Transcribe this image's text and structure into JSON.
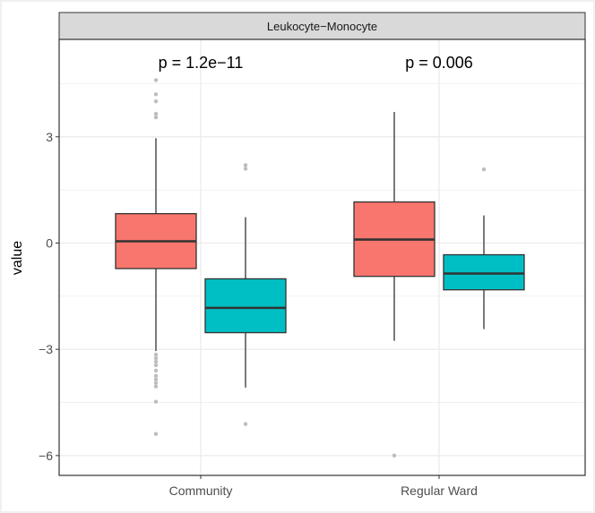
{
  "chart_data": {
    "type": "boxplot",
    "facet_label": "Leukocyte−Monocyte",
    "ylabel": "value",
    "xlabel": "",
    "ylim": [
      -6.56,
      5.75
    ],
    "yticks": [
      3,
      0,
      -3,
      -6
    ],
    "ytick_labels": [
      "3",
      "0",
      "−3",
      "−6"
    ],
    "grid": true,
    "categories": [
      "Community",
      "Regular Ward"
    ],
    "colors": {
      "group1": "#F8766D",
      "group2": "#00BFC4",
      "outlier": "#bdbdbd"
    },
    "annotations": [
      "p = 1.2e−11",
      "p = 0.006"
    ],
    "groups": [
      [
        {
          "fill": "#F8766D",
          "q1": -0.72,
          "median": 0.05,
          "q3": 0.83,
          "lower": -3.05,
          "upper": 2.96,
          "outliers": [
            4.6,
            4.2,
            4.0,
            3.65,
            3.55,
            -3.15,
            -3.25,
            -3.35,
            -3.45,
            -3.6,
            -3.75,
            -3.85,
            -3.95,
            -4.05,
            -4.48,
            -5.39
          ]
        },
        {
          "fill": "#00BFC4",
          "q1": -2.53,
          "median": -1.83,
          "q3": -1.01,
          "lower": -4.08,
          "upper": 0.73,
          "outliers": [
            2.2,
            2.1,
            -5.11
          ]
        }
      ],
      [
        {
          "fill": "#F8766D",
          "q1": -0.94,
          "median": 0.1,
          "q3": 1.16,
          "lower": -2.76,
          "upper": 3.7,
          "outliers": [
            -6.0
          ]
        },
        {
          "fill": "#00BFC4",
          "q1": -1.32,
          "median": -0.86,
          "q3": -0.33,
          "lower": -2.43,
          "upper": 0.78,
          "outliers": [
            2.08
          ]
        }
      ]
    ]
  }
}
